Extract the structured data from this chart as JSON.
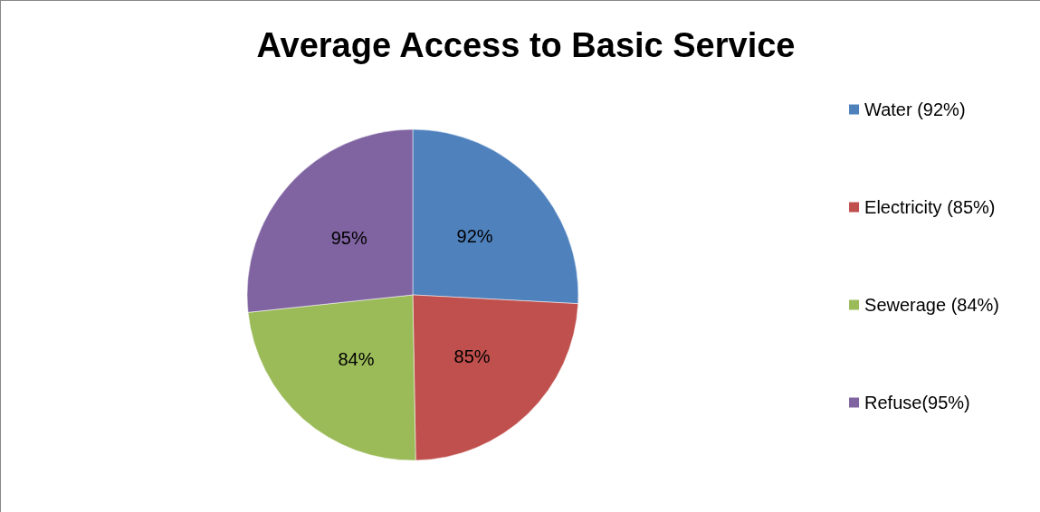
{
  "chart_data": {
    "type": "pie",
    "title": "Average Access to Basic Service",
    "categories": [
      "Water (92%)",
      "Electricity (85%)",
      "Sewerage (84%)",
      "Refuse(95%)"
    ],
    "values": [
      92,
      85,
      84,
      95
    ],
    "colors": [
      "#4f81bd",
      "#c0504d",
      "#9bbb59",
      "#8064a2"
    ],
    "value_labels": [
      "92%",
      "85%",
      "84%",
      "95%"
    ],
    "legend": "right"
  }
}
